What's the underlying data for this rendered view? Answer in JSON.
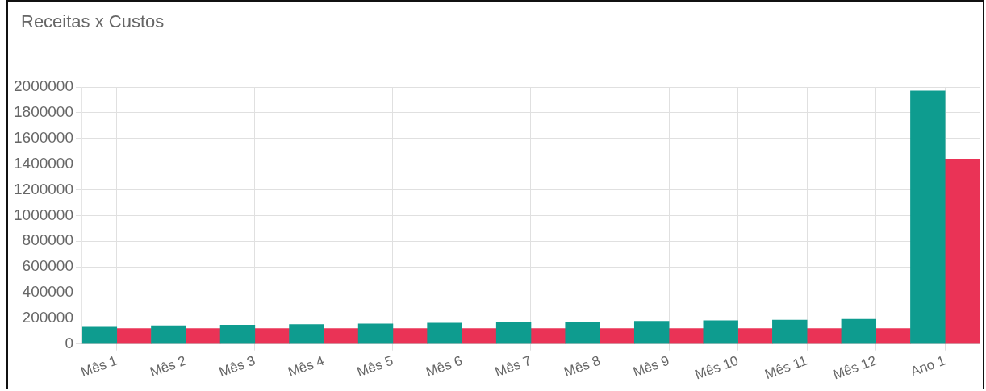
{
  "chart_data": {
    "type": "bar",
    "title": "Receitas x Custos",
    "categories": [
      "Mês 1",
      "Mês 2",
      "Mês 3",
      "Mês 4",
      "Mês 5",
      "Mês 6",
      "Mês 7",
      "Mês 8",
      "Mês 9",
      "Mês 10",
      "Mês 11",
      "Mês 12",
      "Ano 1"
    ],
    "series": [
      {
        "color": "#0e9c8f",
        "values": [
          137000,
          142000,
          147000,
          152000,
          157000,
          162000,
          167000,
          172000,
          177000,
          182000,
          187000,
          192000,
          1970000
        ]
      },
      {
        "color": "#ea3356",
        "values": [
          120000,
          120000,
          120000,
          120000,
          120000,
          120000,
          120000,
          120000,
          120000,
          120000,
          120000,
          120000,
          1440000
        ]
      }
    ],
    "ylim": [
      0,
      2000000
    ],
    "yticks": [
      0,
      200000,
      400000,
      600000,
      800000,
      1000000,
      1200000,
      1400000,
      1600000,
      1800000,
      2000000
    ],
    "grid": true,
    "legend": false
  }
}
